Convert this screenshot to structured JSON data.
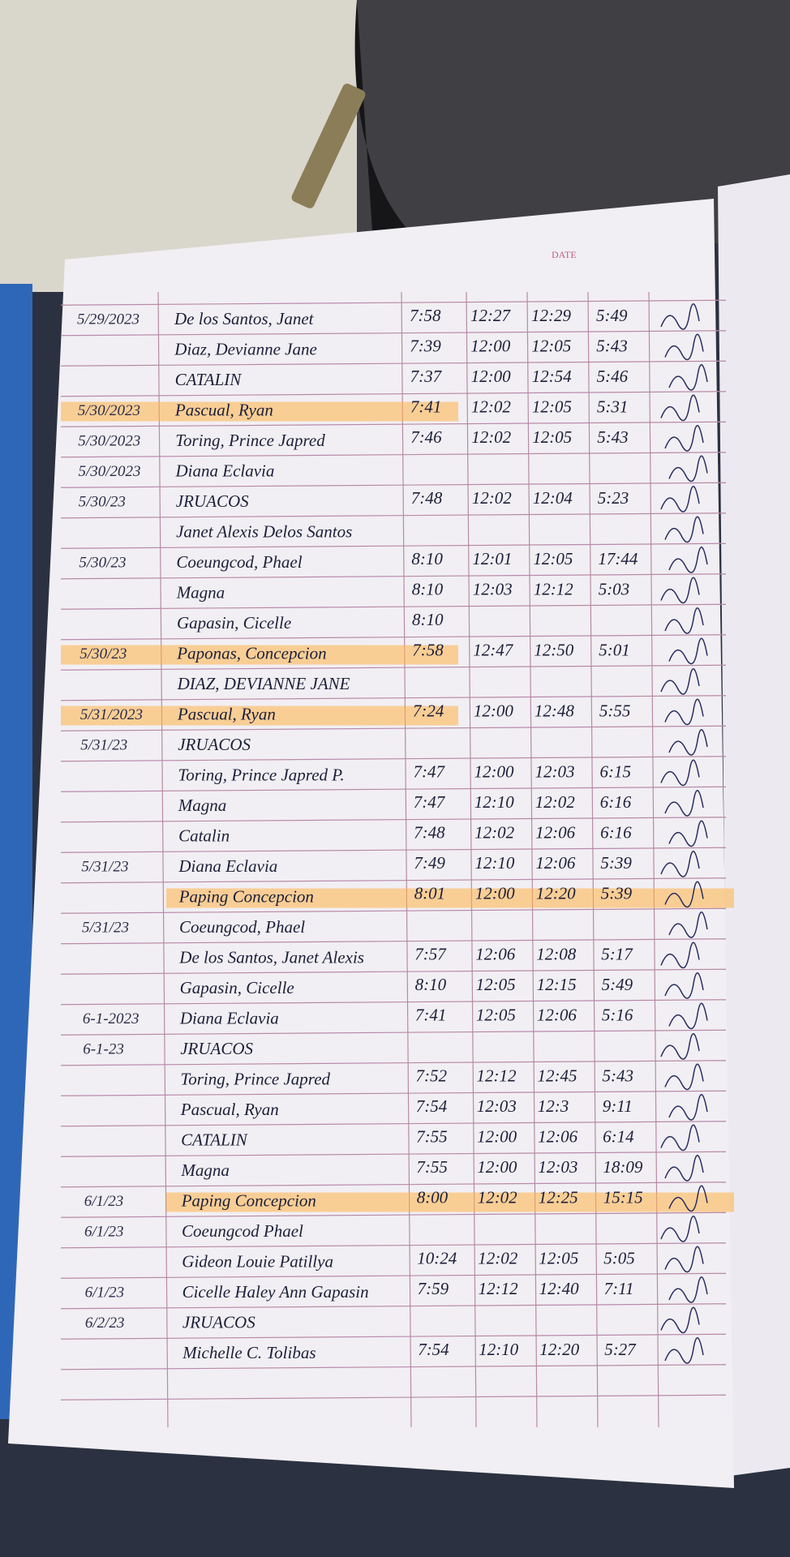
{
  "header": {
    "date_label": "DATE"
  },
  "rows": [
    [
      "5/29/2023",
      "De los Santos, Janet",
      "7:58",
      "12:27",
      "12:29",
      "5:49"
    ],
    [
      null,
      "Diaz, Devianne Jane",
      "7:39",
      "12:00",
      "12:05",
      "5:43"
    ],
    [
      null,
      "CATALIN",
      "7:37",
      "12:00",
      "12:54",
      "5:46"
    ],
    [
      "5/30/2023",
      "Pascual, Ryan",
      "7:41",
      "12:02",
      "12:05",
      "5:31"
    ],
    [
      "5/30/2023",
      "Toring, Prince Japred",
      "7:46",
      "12:02",
      "12:05",
      "5:43"
    ],
    [
      "5/30/2023",
      "Diana Eclavia",
      null,
      null,
      null,
      null
    ],
    [
      "5/30/23",
      "JRUACOS",
      "7:48",
      "12:02",
      "12:04",
      "5:23"
    ],
    [
      null,
      "Janet Alexis Delos Santos",
      null,
      null,
      null,
      null
    ],
    [
      "5/30/23",
      "Coeungcod, Phael",
      "8:10",
      "12:01",
      "12:05",
      "17:44"
    ],
    [
      null,
      "Magna",
      "8:10",
      "12:03",
      "12:12",
      "5:03"
    ],
    [
      null,
      "Gapasin, Cicelle",
      "8:10",
      null,
      null,
      null
    ],
    [
      "5/30/23",
      "Paponas, Concepcion",
      "7:58",
      "12:47",
      "12:50",
      "5:01"
    ],
    [
      null,
      "DIAZ, DEVIANNE JANE",
      null,
      null,
      null,
      null
    ],
    [
      "5/31/2023",
      "Pascual, Ryan",
      "7:24",
      "12:00",
      "12:48",
      "5:55"
    ],
    [
      "5/31/23",
      "JRUACOS",
      null,
      null,
      null,
      null
    ],
    [
      null,
      "Toring, Prince Japred P.",
      "7:47",
      "12:00",
      "12:03",
      "6:15"
    ],
    [
      null,
      "Magna",
      "7:47",
      "12:10",
      "12:02",
      "6:16"
    ],
    [
      null,
      "Catalin",
      "7:48",
      "12:02",
      "12:06",
      "6:16"
    ],
    [
      "5/31/23",
      "Diana Eclavia",
      "7:49",
      "12:10",
      "12:06",
      "5:39"
    ],
    [
      null,
      "Paping Concepcion",
      "8:01",
      "12:00",
      "12:20",
      "5:39"
    ],
    [
      "5/31/23",
      "Coeungcod, Phael",
      null,
      null,
      null,
      null
    ],
    [
      null,
      "De los Santos, Janet Alexis",
      "7:57",
      "12:06",
      "12:08",
      "5:17"
    ],
    [
      null,
      "Gapasin, Cicelle",
      "8:10",
      "12:05",
      "12:15",
      "5:49"
    ],
    [
      "6-1-2023",
      "Diana Eclavia",
      "7:41",
      "12:05",
      "12:06",
      "5:16"
    ],
    [
      "6-1-23",
      "JRUACOS",
      null,
      null,
      null,
      null
    ],
    [
      null,
      "Toring, Prince Japred",
      "7:52",
      "12:12",
      "12:45",
      "5:43"
    ],
    [
      null,
      "Pascual, Ryan",
      "7:54",
      "12:03",
      "12:3",
      "9:11"
    ],
    [
      null,
      "CATALIN",
      "7:55",
      "12:00",
      "12:06",
      "6:14"
    ],
    [
      null,
      "Magna",
      "7:55",
      "12:00",
      "12:03",
      "18:09"
    ],
    [
      "6/1/23",
      "Paping Concepcion",
      "8:00",
      "12:02",
      "12:25",
      "15:15"
    ],
    [
      "6/1/23",
      "Coeungcod Phael",
      null,
      null,
      null,
      null
    ],
    [
      null,
      "Gideon Louie Patillya",
      "10:24",
      "12:02",
      "12:05",
      "5:05"
    ],
    [
      "6/1/23",
      "Cicelle Haley Ann Gapasin",
      "7:59",
      "12:12",
      "12:40",
      "7:11"
    ],
    [
      "6/2/23",
      "JRUACOS",
      null,
      null,
      null,
      null
    ],
    [
      null,
      "Michelle C. Tolibas",
      "7:54",
      "12:10",
      "12:20",
      "5:27"
    ]
  ]
}
